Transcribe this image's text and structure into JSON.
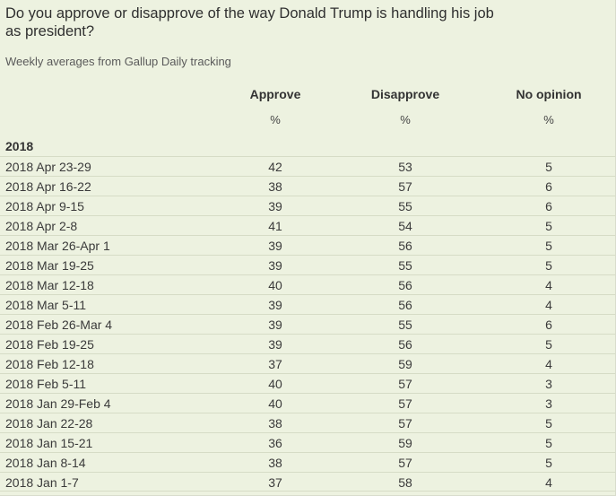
{
  "question": "Do you approve or disapprove of the way Donald Trump is handling his job as president?",
  "subtitle": "Weekly averages from Gallup Daily tracking",
  "columns": {
    "approve": "Approve",
    "disapprove": "Disapprove",
    "no_opinion": "No opinion",
    "unit": "%"
  },
  "year_label": "2018",
  "rows": [
    {
      "period": "2018 Apr 23-29",
      "approve": "42",
      "disapprove": "53",
      "no_opinion": "5"
    },
    {
      "period": "2018 Apr 16-22",
      "approve": "38",
      "disapprove": "57",
      "no_opinion": "6"
    },
    {
      "period": "2018 Apr 9-15",
      "approve": "39",
      "disapprove": "55",
      "no_opinion": "6"
    },
    {
      "period": "2018 Apr 2-8",
      "approve": "41",
      "disapprove": "54",
      "no_opinion": "5"
    },
    {
      "period": "2018 Mar 26-Apr 1",
      "approve": "39",
      "disapprove": "56",
      "no_opinion": "5"
    },
    {
      "period": "2018 Mar 19-25",
      "approve": "39",
      "disapprove": "55",
      "no_opinion": "5"
    },
    {
      "period": "2018 Mar 12-18",
      "approve": "40",
      "disapprove": "56",
      "no_opinion": "4"
    },
    {
      "period": "2018 Mar 5-11",
      "approve": "39",
      "disapprove": "56",
      "no_opinion": "4"
    },
    {
      "period": "2018 Feb 26-Mar 4",
      "approve": "39",
      "disapprove": "55",
      "no_opinion": "6"
    },
    {
      "period": "2018 Feb 19-25",
      "approve": "39",
      "disapprove": "56",
      "no_opinion": "5"
    },
    {
      "period": "2018 Feb 12-18",
      "approve": "37",
      "disapprove": "59",
      "no_opinion": "4"
    },
    {
      "period": "2018 Feb 5-11",
      "approve": "40",
      "disapprove": "57",
      "no_opinion": "3"
    },
    {
      "period": "2018 Jan 29-Feb 4",
      "approve": "40",
      "disapprove": "57",
      "no_opinion": "3"
    },
    {
      "period": "2018 Jan 22-28",
      "approve": "38",
      "disapprove": "57",
      "no_opinion": "5"
    },
    {
      "period": "2018 Jan 15-21",
      "approve": "36",
      "disapprove": "59",
      "no_opinion": "5"
    },
    {
      "period": "2018 Jan 8-14",
      "approve": "38",
      "disapprove": "57",
      "no_opinion": "5"
    },
    {
      "period": "2018 Jan 1-7",
      "approve": "37",
      "disapprove": "58",
      "no_opinion": "4"
    }
  ]
}
